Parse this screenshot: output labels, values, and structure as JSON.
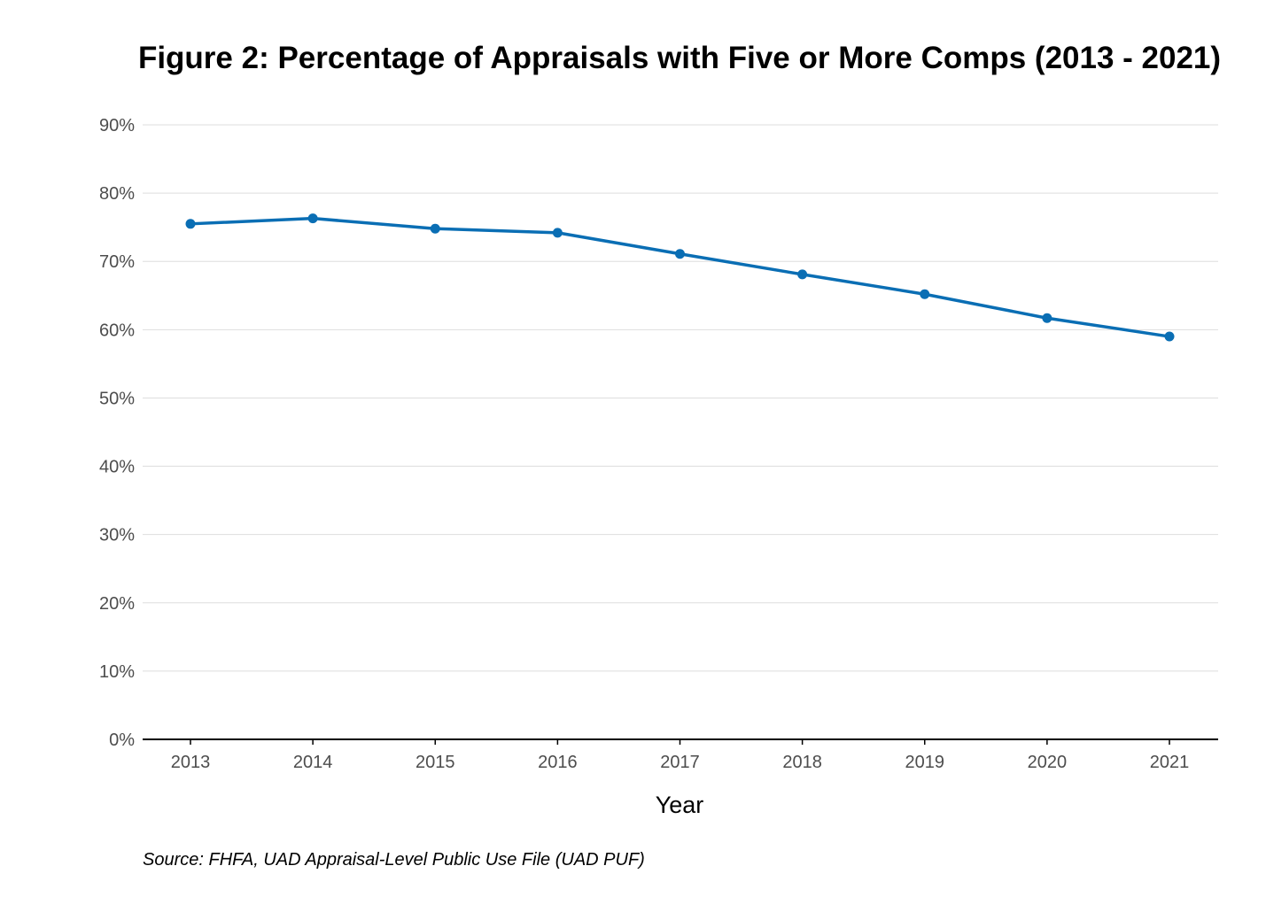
{
  "chart_data": {
    "type": "line",
    "title": "Figure 2: Percentage of Appraisals with Five or More Comps (2013 - 2021)",
    "xlabel": "Year",
    "ylabel": "",
    "categories": [
      "2013",
      "2014",
      "2015",
      "2016",
      "2017",
      "2018",
      "2019",
      "2020",
      "2021"
    ],
    "series": [
      {
        "values": [
          75.5,
          76.3,
          74.8,
          74.2,
          71.1,
          68.1,
          65.2,
          61.7,
          59.0
        ]
      }
    ],
    "ylim": [
      0,
      90
    ],
    "yticks": [
      0,
      10,
      20,
      30,
      40,
      50,
      60,
      70,
      80,
      90
    ],
    "ytick_labels": [
      "0%",
      "10%",
      "20%",
      "30%",
      "40%",
      "50%",
      "60%",
      "70%",
      "80%",
      "90%"
    ],
    "grid": "horizontal",
    "line_color": "#0a6eb4",
    "gridline_color": "#dedede",
    "axis_color": "#000000",
    "source": "Source: FHFA, UAD Appraisal-Level Public Use File (UAD PUF)"
  }
}
